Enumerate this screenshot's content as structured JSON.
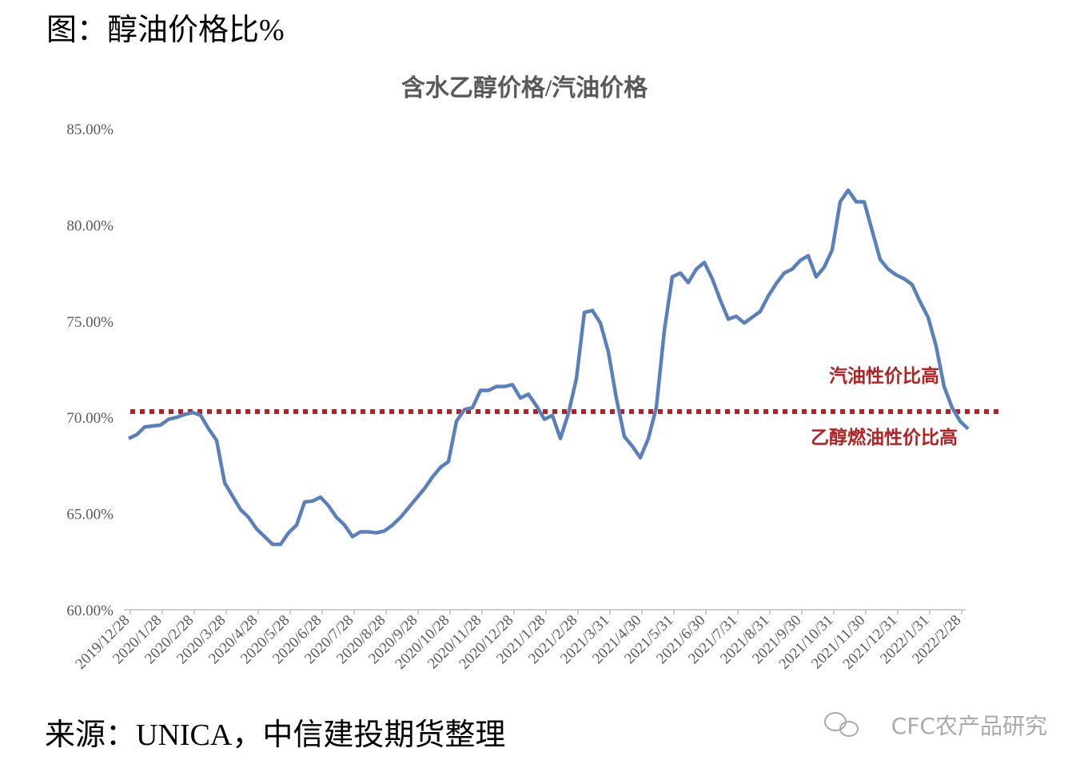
{
  "heading": "图：醇油价格比%",
  "source": "来源：UNICA，中信建投期货整理",
  "watermark": "CFC农产品研究",
  "chart_data": {
    "type": "line",
    "title": "含水乙醇价格/汽油价格",
    "categories": [
      "2019/12/28",
      null,
      null,
      null,
      "2020/1/28",
      null,
      null,
      null,
      "2020/2/28",
      null,
      null,
      null,
      "2020/3/28",
      null,
      null,
      null,
      "2020/4/28",
      null,
      null,
      null,
      "2020/5/28",
      null,
      null,
      null,
      "2020/6/28",
      null,
      null,
      null,
      "2020/7/28",
      null,
      null,
      null,
      "2020/8/28",
      null,
      null,
      null,
      "2020/9/28",
      null,
      null,
      null,
      "2020/10/28",
      null,
      null,
      null,
      "2020/11/28",
      null,
      null,
      null,
      "2020/12/28",
      null,
      null,
      null,
      "2021/1/28",
      null,
      null,
      null,
      "2021/2/28",
      null,
      null,
      null,
      "2021/3/31",
      null,
      null,
      null,
      "2021/4/30",
      null,
      null,
      null,
      "2021/5/31",
      null,
      null,
      null,
      "2021/6/30",
      null,
      null,
      null,
      "2021/7/31",
      null,
      null,
      null,
      "2021/8/31",
      null,
      null,
      null,
      "2021/9/30",
      null,
      null,
      null,
      "2021/10/31",
      null,
      null,
      null,
      "2021/11/30",
      null,
      null,
      null,
      "2021/12/31",
      null,
      null,
      null,
      "2022/1/31",
      null,
      null,
      null,
      "2022/2/28",
      null
    ],
    "values": [
      68.9,
      69.1,
      69.5,
      69.55,
      69.6,
      69.9,
      70.0,
      70.15,
      70.25,
      70.1,
      69.4,
      68.8,
      66.6,
      65.9,
      65.2,
      64.8,
      64.2,
      63.8,
      63.4,
      63.4,
      64.0,
      64.4,
      65.6,
      65.65,
      65.85,
      65.4,
      64.8,
      64.4,
      63.8,
      64.05,
      64.05,
      64.0,
      64.1,
      64.4,
      64.8,
      65.3,
      65.8,
      66.3,
      66.9,
      67.4,
      67.7,
      69.8,
      70.4,
      70.5,
      71.4,
      71.4,
      71.6,
      71.6,
      71.7,
      71.0,
      71.2,
      70.6,
      69.9,
      70.1,
      68.9,
      70.2,
      72.0,
      75.45,
      75.55,
      74.9,
      73.4,
      71.0,
      69.0,
      68.5,
      67.9,
      68.9,
      70.5,
      74.5,
      77.3,
      77.5,
      77.0,
      77.7,
      78.05,
      77.2,
      76.1,
      75.1,
      75.25,
      74.9,
      75.2,
      75.5,
      76.3,
      76.95,
      77.5,
      77.7,
      78.15,
      78.4,
      77.3,
      77.8,
      78.7,
      81.2,
      81.8,
      81.2,
      81.2,
      79.7,
      78.2,
      77.7,
      77.4,
      77.2,
      76.9,
      76.0,
      75.2,
      73.7,
      71.6,
      70.5,
      69.8,
      69.4
    ],
    "color": "#5a7fbd",
    "ylim": [
      60,
      85
    ],
    "yticks": [
      {
        "value": 60,
        "label": "60.00%"
      },
      {
        "value": 65,
        "label": "65.00%"
      },
      {
        "value": 70,
        "label": "70.00%"
      },
      {
        "value": 75,
        "label": "75.00%"
      },
      {
        "value": 80,
        "label": "80.00%"
      },
      {
        "value": 85,
        "label": "85.00%"
      }
    ],
    "reference_line": {
      "value": 70.3,
      "color": "#b22222"
    },
    "annotations": [
      {
        "text": "汽油性价比高",
        "color": "#b22222"
      },
      {
        "text": "乙醇燃油性价比高",
        "color": "#b22222"
      }
    ]
  }
}
